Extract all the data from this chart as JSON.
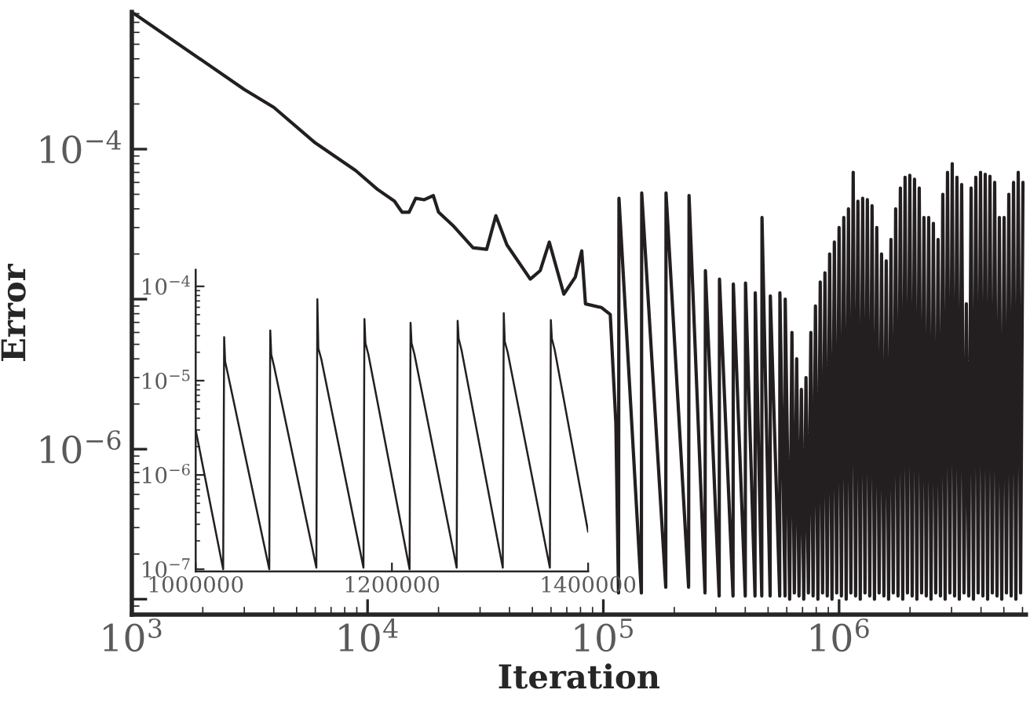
{
  "chart_data": [
    {
      "type": "line",
      "xlabel": "Iteration",
      "ylabel": "Error",
      "log": "xy",
      "xlim": [
        1000,
        6200000
      ],
      "ylim": [
        7.9e-08,
        0.00082
      ],
      "xticks": [
        {
          "value": 1000,
          "label": "10$^{3}$"
        },
        {
          "value": 10000,
          "label": "10$^{4}$"
        },
        {
          "value": 100000,
          "label": "10$^{5}$"
        },
        {
          "value": 1000000,
          "label": "10$^{6}$"
        }
      ],
      "yticks": [
        {
          "value": 1e-07,
          "label": null
        },
        {
          "value": 1e-06,
          "label": "10$^{−6}$"
        },
        {
          "value": 1e-05,
          "label": null
        },
        {
          "value": 0.0001,
          "label": "10$^{−4}$"
        }
      ],
      "series": [
        {
          "color": "#231f20",
          "x": [
            1000,
            3000,
            4000,
            6000,
            8900,
            11000,
            13000,
            14000,
            15000,
            16000,
            17400,
            19000,
            20000,
            23000,
            28000,
            32000,
            35000,
            39000,
            49000,
            54000,
            59000,
            68000,
            76000,
            81000,
            84000,
            98000,
            107000,
            113000,
            116000,
            116500,
            145000,
            145500,
            184000,
            184500,
            230000,
            231000,
            270000,
            271000,
            310000,
            311000,
            355000,
            356000,
            400000,
            401000,
            440000,
            441000,
            470000,
            471000,
            510000,
            511000,
            560000,
            561000,
            590000,
            591000,
            617000,
            631000,
            646000,
            661000,
            676000,
            692000,
            708000,
            724000,
            741000,
            759000,
            776000,
            794000,
            813000,
            832000,
            851000,
            871000,
            891000,
            912000,
            933000,
            955000,
            977000,
            1000000,
            1023000,
            1047000,
            1072000,
            1096000,
            1122000,
            1148000,
            1175000,
            1202000,
            1230000,
            1259000,
            1288000,
            1318000,
            1349000,
            1380000,
            1413000,
            1445000,
            1479000,
            1514000,
            1549000,
            1585000,
            1622000,
            1660000,
            1698000,
            1738000,
            1778000,
            1820000,
            1862000,
            1905000,
            1950000,
            1995000,
            2042000,
            2089000,
            2138000,
            2188000,
            2239000,
            2291000,
            2344000,
            2399000,
            2455000,
            2512000,
            2570000,
            2630000,
            2692000,
            2754000,
            2818000,
            2884000,
            2951000,
            3020000,
            3090000,
            3162000,
            3236000,
            3311000,
            3388000,
            3467000,
            3548000,
            3631000,
            3715000,
            3802000,
            3890000,
            3981000,
            4074000,
            4169000,
            4266000,
            4365000,
            4467000,
            4571000,
            4677000,
            4786000,
            4898000,
            5012000,
            5129000,
            5248000,
            5370000,
            5495000,
            5623000,
            5754000,
            5888000,
            6026000
          ],
          "values": [
            0.00082,
            0.00025,
            0.00019,
            0.00011,
            7.2e-05,
            5.4e-05,
            4.5e-05,
            3.8e-05,
            3.8e-05,
            4.7e-05,
            4.6e-05,
            4.9e-05,
            3.8e-05,
            3.1e-05,
            2.2e-05,
            2.15e-05,
            3.6e-05,
            2.3e-05,
            1.36e-05,
            1.55e-05,
            2.4e-05,
            1.08e-05,
            1.4e-05,
            2.1e-05,
            9.3e-06,
            8.8e-06,
            7.9e-06,
            1.5e-06,
            1.1e-07,
            4.7e-05,
            1.1e-07,
            5.1e-05,
            1.2e-07,
            5.1e-05,
            1.2e-07,
            4.9e-05,
            1.1e-07,
            1.55e-05,
            1.05e-07,
            1.36e-05,
            1.05e-07,
            1.26e-05,
            1.05e-07,
            1.28e-05,
            1.05e-07,
            1.1e-05,
            1.05e-07,
            3.5e-05,
            1.05e-07,
            1.05e-05,
            1.05e-07,
            1.1e-05,
            1.05e-07,
            1e-05,
            1e-07,
            6e-06,
            1.1e-07,
            4e-06,
            1.05e-07,
            2.5e-06,
            1e-07,
            3e-06,
            1.1e-07,
            6e-06,
            1.05e-07,
            9e-06,
            1e-07,
            1.3e-05,
            1.1e-07,
            1.5e-05,
            1.05e-07,
            2e-05,
            1e-07,
            2.4e-05,
            1.1e-07,
            3e-05,
            1.05e-07,
            3.5e-05,
            1e-07,
            4e-05,
            1.1e-07,
            7e-05,
            1.05e-07,
            4.5e-05,
            1e-07,
            4.7e-05,
            1.1e-07,
            4.6e-05,
            1.05e-07,
            4.2e-05,
            1e-07,
            3e-05,
            1.1e-07,
            2e-05,
            1.05e-07,
            1.8e-05,
            1e-07,
            2.5e-05,
            1.1e-07,
            4e-05,
            1.05e-07,
            5.5e-05,
            1e-07,
            6.5e-05,
            1.1e-07,
            6.7e-05,
            1.05e-07,
            6.3e-05,
            1e-07,
            5.5e-05,
            1.1e-07,
            3.5e-05,
            1.05e-07,
            3.5e-05,
            1e-07,
            3.2e-05,
            1.1e-07,
            2.5e-05,
            1.05e-07,
            5e-05,
            1e-07,
            7e-05,
            1.1e-07,
            8e-05,
            1.05e-07,
            6.5e-05,
            1e-07,
            5.8e-05,
            1.1e-07,
            9.3e-06,
            1.05e-07,
            5.5e-05,
            1e-07,
            6.5e-05,
            1.1e-07,
            7e-05,
            1.05e-07,
            6.8e-05,
            1e-07,
            6.6e-05,
            1.1e-07,
            6e-05,
            1.05e-07,
            3.5e-05,
            1e-07,
            3.5e-05,
            1.1e-07,
            5e-05,
            1.05e-07,
            6e-05,
            1e-07,
            7e-05,
            1.1e-07,
            6e-05
          ]
        }
      ]
    },
    {
      "type": "line",
      "log": "y",
      "xlim": [
        1000000,
        1400000
      ],
      "ylim": [
        9.5e-08,
        0.00015
      ],
      "xticks": [
        1000000,
        1200000,
        1400000
      ],
      "yticks": [
        {
          "value": 1e-07,
          "label": "10$^{−7}$"
        },
        {
          "value": 1e-06,
          "label": "10$^{−6}$"
        },
        {
          "value": 1e-05,
          "label": "10$^{−5}$"
        },
        {
          "value": 0.0001,
          "label": "10$^{−4}$"
        }
      ],
      "series": [
        {
          "color": "#231f20",
          "x": [
            1000000,
            1028000,
            1029000,
            1030000,
            1033000,
            1075000,
            1076000,
            1077000,
            1080000,
            1123000,
            1124000,
            1125000,
            1128000,
            1171000,
            1172000,
            1173000,
            1176000,
            1218000,
            1219000,
            1220000,
            1223000,
            1266000,
            1267000,
            1268000,
            1271000,
            1313000,
            1314000,
            1315000,
            1318000,
            1361000,
            1362000,
            1363000,
            1366000,
            1400000
          ],
          "values": [
            3e-06,
            1e-07,
            2.9e-05,
            1.6e-05,
            1.15e-05,
            1e-07,
            3.4e-05,
            1.9e-05,
            1.4e-05,
            1.04e-07,
            7.3e-05,
            2.2e-05,
            1.7e-05,
            1.04e-07,
            4.5e-05,
            2.5e-05,
            1.9e-05,
            1e-07,
            4.1e-05,
            2.5e-05,
            1.9e-05,
            1.04e-07,
            4.3e-05,
            2.8e-05,
            2.1e-05,
            1.04e-07,
            5.2e-05,
            2.6e-05,
            2e-05,
            1.04e-07,
            4.4e-05,
            2.8e-05,
            2.1e-05,
            2.5e-07
          ]
        }
      ]
    }
  ]
}
